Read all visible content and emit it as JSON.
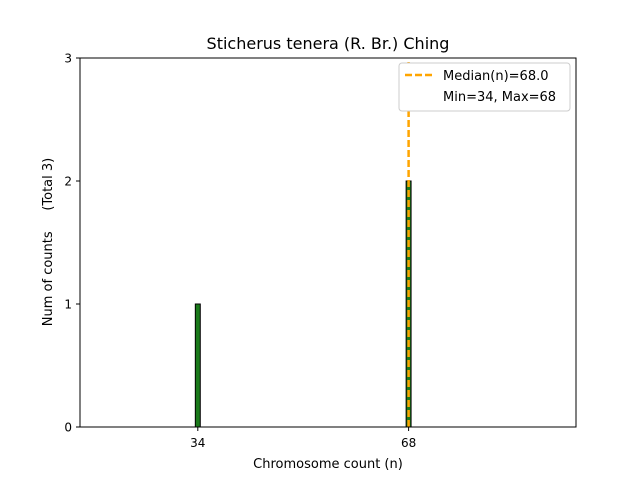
{
  "chart_data": {
    "type": "bar",
    "title": "Sticherus tenera (R. Br.) Ching",
    "xlabel": "Chromosome count (n)",
    "ylabel": "Num of counts     (Total 3)",
    "xlim": [
      15,
      95
    ],
    "ylim": [
      0,
      3
    ],
    "x_ticks": [
      34,
      68
    ],
    "y_ticks": [
      0,
      1,
      2,
      3
    ],
    "bars": [
      {
        "x": 34,
        "value": 1
      },
      {
        "x": 68,
        "value": 2
      }
    ],
    "bar_width": 0.8,
    "bar_color": "#1a7a1a",
    "median": 68.0,
    "median_color": "#ffa500",
    "legend": {
      "placement": "top-right",
      "entries": [
        {
          "label": "Median(n)=68.0",
          "style": "dashed-line",
          "color": "#ffa500"
        },
        {
          "label": "Min=34, Max=68",
          "style": "none"
        }
      ]
    },
    "grid": false
  }
}
